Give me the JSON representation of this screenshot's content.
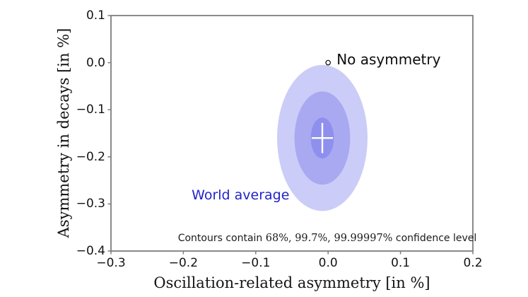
{
  "chart_data": {
    "type": "scatter",
    "subtype": "confidence-ellipse-plot",
    "title": "",
    "xlabel": "Oscillation-related asymmetry [in %]",
    "ylabel": "Asymmetry in decays [in %]",
    "xlim": [
      -0.3,
      0.2
    ],
    "ylim": [
      -0.4,
      0.1
    ],
    "grid": false,
    "x_ticks": {
      "values": [
        -0.3,
        -0.2,
        -0.1,
        0.0,
        0.1,
        0.2
      ],
      "labels": [
        "−0.3",
        "−0.2",
        "−0.1",
        "0.0",
        "0.1",
        "0.2"
      ]
    },
    "y_ticks": {
      "values": [
        0.1,
        0.0,
        -0.1,
        -0.2,
        -0.3,
        -0.4
      ],
      "labels": [
        "0.1",
        "0.0",
        "−0.1",
        "−0.2",
        "−0.3",
        "−0.4"
      ]
    },
    "confidence_ellipses": [
      {
        "level": "99.99997%",
        "cx": -0.008,
        "cy": -0.16,
        "rx": 0.0625,
        "ry": 0.155,
        "color": "#ccccf8"
      },
      {
        "level": "99.7%",
        "cx": -0.008,
        "cy": -0.16,
        "rx": 0.0385,
        "ry": 0.099,
        "color": "#a9a9f2"
      },
      {
        "level": "68%",
        "cx": -0.008,
        "cy": -0.16,
        "rx": 0.016,
        "ry": 0.0435,
        "color": "#8f8fee"
      }
    ],
    "points": {
      "no_asymmetry": {
        "x": 0.0,
        "y": 0.0,
        "label": "No asymmetry",
        "marker": "open-circle",
        "marker_color": "#1a1a1a"
      },
      "world_average": {
        "x": -0.008,
        "y": -0.16,
        "xerr": 0.0147,
        "yerr": 0.032,
        "label": "World average",
        "label_color": "#2222cc",
        "label_pos": {
          "x": -0.121,
          "y": -0.281
        },
        "marker": "white-cross",
        "marker_color": "#ffffff"
      }
    },
    "annotation": "Contours contain 68%, 99.7%, 99.99997% confidence level",
    "annotation_parts": [
      {
        "text": "Contours contain ",
        "serif": false
      },
      {
        "text": "68%, 99.7%, 99.99997%",
        "serif": true
      },
      {
        "text": " confidence level",
        "serif": false
      }
    ],
    "axis_color": "#7d7d7d"
  }
}
